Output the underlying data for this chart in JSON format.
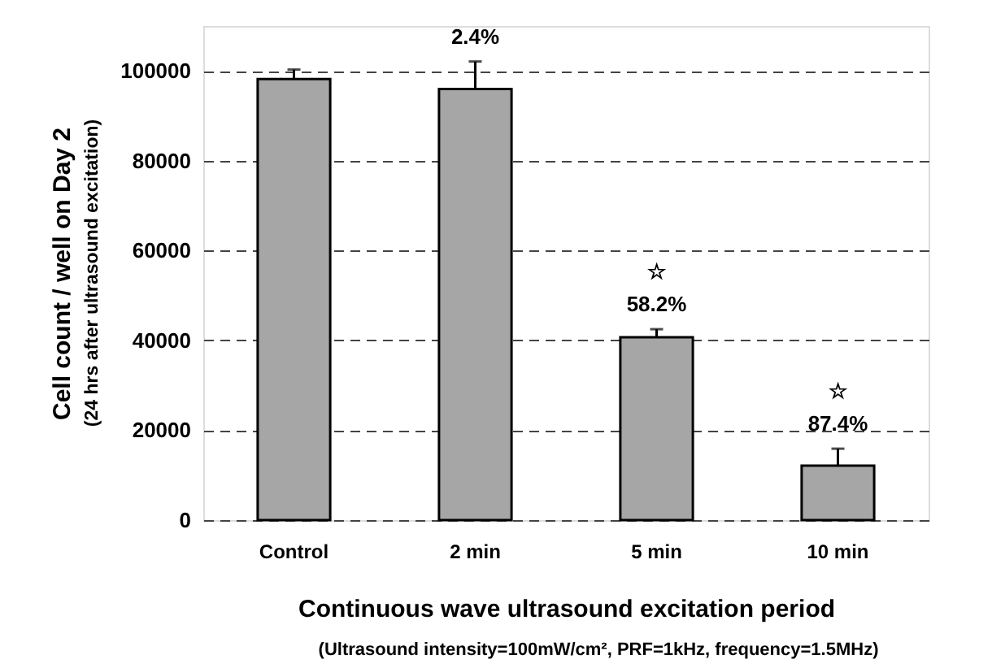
{
  "chart_data": {
    "type": "bar",
    "categories": [
      "Control",
      "2 min",
      "5 min",
      "10 min"
    ],
    "values": [
      98200,
      96000,
      40700,
      12100
    ],
    "errors": [
      [
        98200,
        100300
      ],
      [
        96000,
        102100
      ],
      [
        40700,
        42500
      ],
      [
        12100,
        15900
      ]
    ],
    "color": "#a6a6a6",
    "ylabel": "Cell count / well on Day 2",
    "xlabel": "Continuous wave ultrasound excitation period",
    "ylim": [
      0,
      110000
    ],
    "yticks": [
      0,
      20000,
      40000,
      60000,
      80000,
      100000
    ],
    "grid": "y",
    "line_style": "dashed",
    "annotations": [
      "(24 hrs after ultrasound excitation)",
      "(Ultrasound intensity=100mW/cm², PRF=1kHz, frequency=1.5MHz)",
      "2.4%",
      "☆\n58.2%",
      "☆\n87.4%"
    ]
  }
}
